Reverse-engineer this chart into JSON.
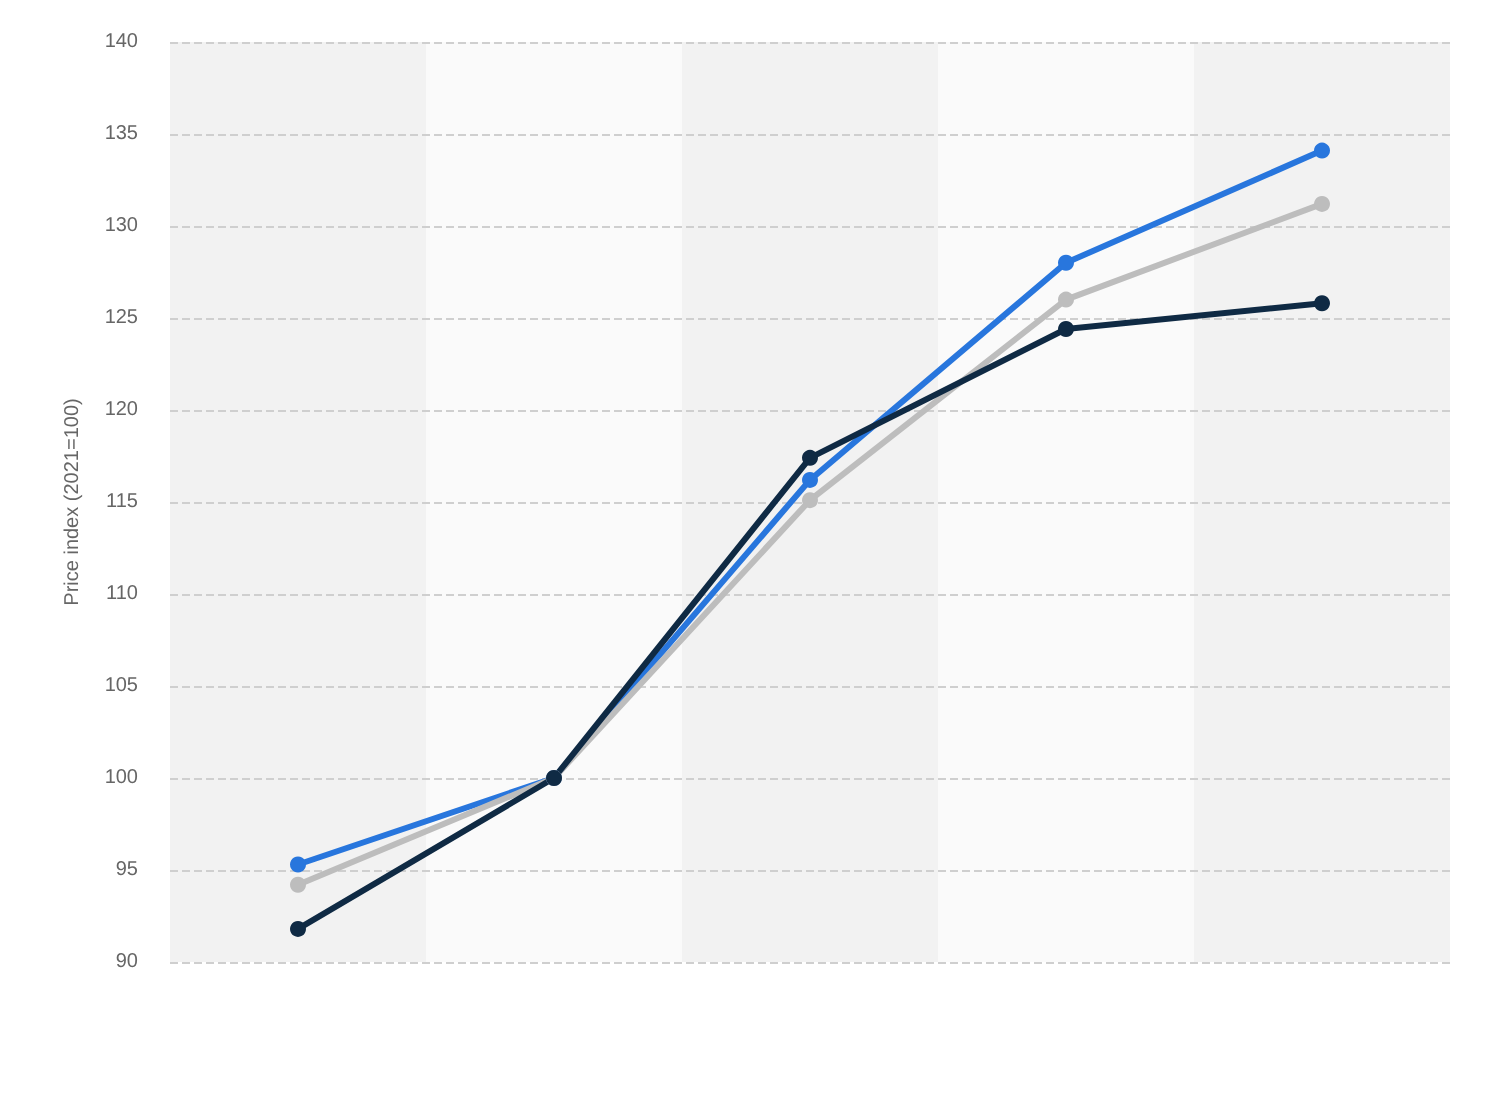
{
  "chart_data": {
    "type": "line",
    "ylabel": "Price index (2021=100)",
    "categories": [
      null,
      null,
      null,
      null,
      null
    ],
    "series": [
      {
        "color": "#2876dd",
        "values": [
          95.3,
          100,
          116.2,
          128,
          134.1
        ]
      },
      {
        "color": "#bdbdbd",
        "values": [
          94.2,
          100,
          115.1,
          126,
          131.2
        ]
      },
      {
        "color": "#0f2a44",
        "values": [
          91.8,
          100,
          117.4,
          124.4,
          125.8
        ]
      }
    ],
    "ylim": [
      90,
      140
    ],
    "yticks": [
      90,
      95,
      100,
      105,
      110,
      115,
      120,
      125,
      130,
      135,
      140
    ],
    "grid": "y",
    "marker": "circle",
    "line_style": "solid"
  }
}
